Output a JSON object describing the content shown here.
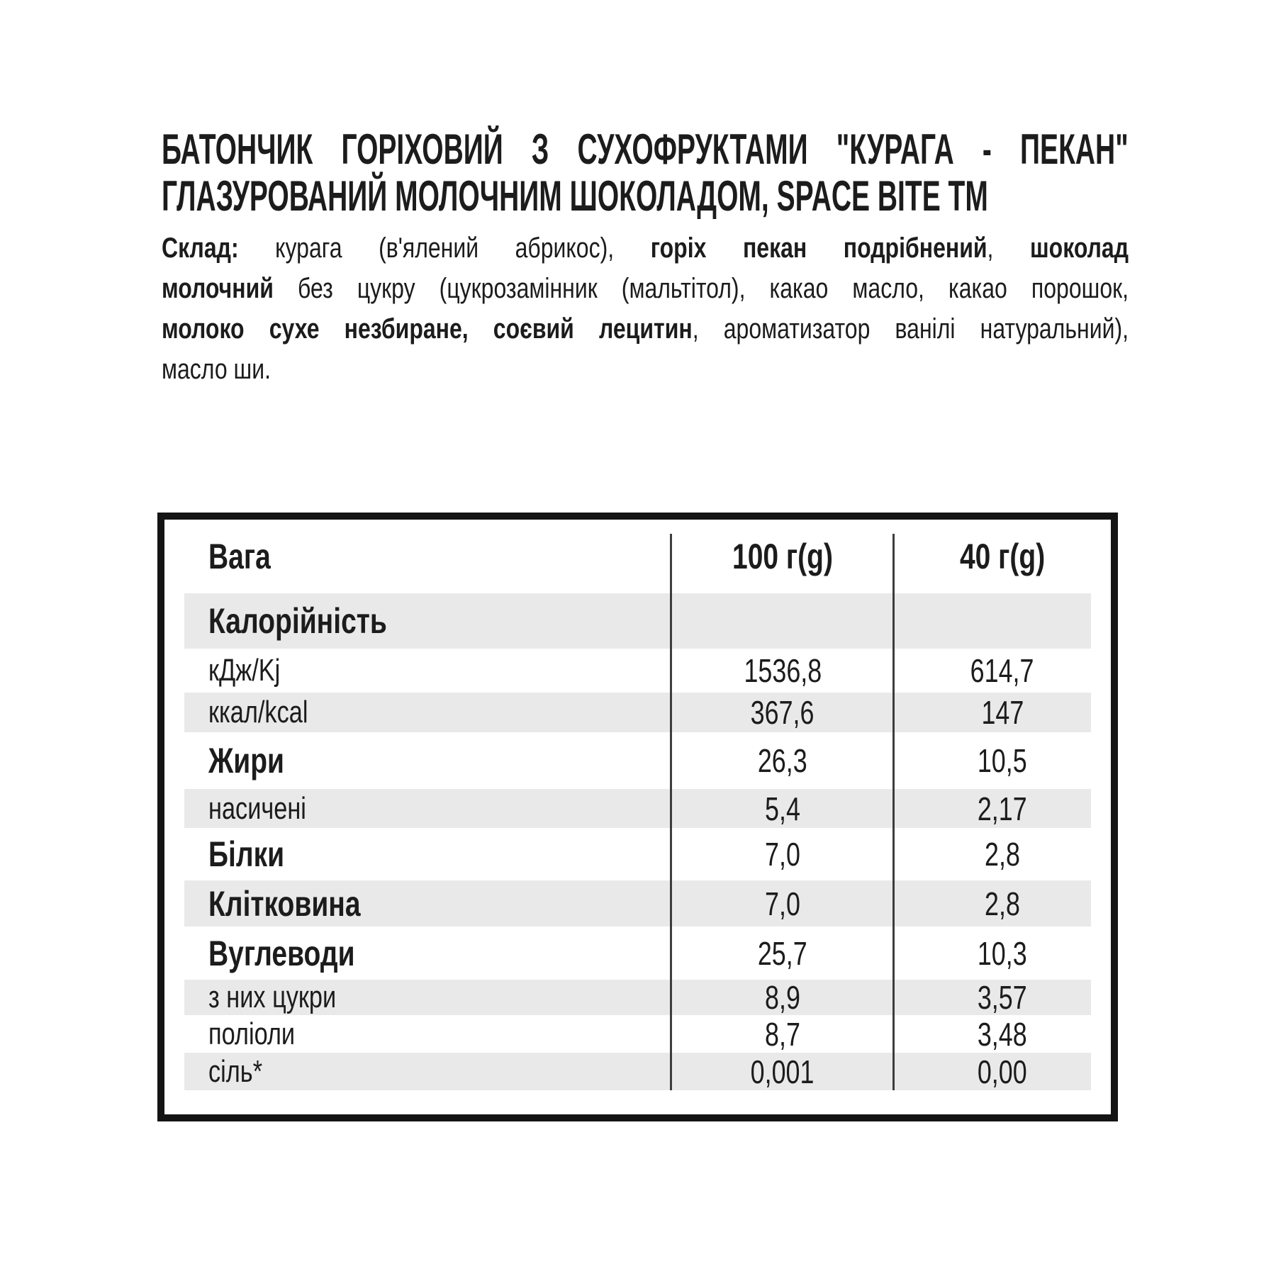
{
  "product": {
    "title_line1": "БАТОНЧИК ГОРІХОВИЙ З СУХОФРУКТАМИ \"КУРАГА - ПЕКАН\"",
    "title_line2": "ГЛАЗУРОВАНИЙ МОЛОЧНИМ ШОКОЛАДОМ, SPACE BITE TM"
  },
  "ingredients": {
    "lines": [
      {
        "segments": [
          {
            "t": "Склад: ",
            "b": true
          },
          {
            "t": "курага (в'ялений абрикос), ",
            "b": false
          },
          {
            "t": "горіх пекан подрібнений",
            "b": true
          },
          {
            "t": ", ",
            "b": false
          },
          {
            "t": "шоколад",
            "b": true
          }
        ]
      },
      {
        "segments": [
          {
            "t": "молочний",
            "b": true
          },
          {
            "t": " без цукру (цукрозамінник (мальтітол), какао масло, какао порошок,",
            "b": false
          }
        ]
      },
      {
        "segments": [
          {
            "t": "молоко сухе незбиране, соєвий лецитин",
            "b": true
          },
          {
            "t": ", ароматизатор ванілі натуральний),",
            "b": false
          }
        ]
      },
      {
        "segments": [
          {
            "t": "масло ши.",
            "b": false
          }
        ]
      }
    ]
  },
  "nutrition_table": {
    "header": {
      "label": "Вага",
      "col100": "100 г(g)",
      "col40": "40 г(g)"
    },
    "rows": [
      {
        "label": "Калорійність",
        "v100": "",
        "v40": ""
      },
      {
        "label": "кДж/Kj",
        "v100": "1536,8",
        "v40": "614,7"
      },
      {
        "label": "ккал/kcal",
        "v100": "367,6",
        "v40": "147"
      },
      {
        "label": "Жири",
        "v100": "26,3",
        "v40": "10,5"
      },
      {
        "label": "насичені",
        "v100": "5,4",
        "v40": "2,17"
      },
      {
        "label": "Білки",
        "v100": "7,0",
        "v40": "2,8"
      },
      {
        "label": "Клітковина",
        "v100": "7,0",
        "v40": "2,8"
      },
      {
        "label": "Вуглеводи",
        "v100": "25,7",
        "v40": "10,3"
      },
      {
        "label": "з них цукри",
        "v100": "8,9",
        "v40": "3,57"
      },
      {
        "label": "поліоли",
        "v100": "8,7",
        "v40": "3,48"
      },
      {
        "label": "сіль*",
        "v100": "0,001",
        "v40": "0,00"
      }
    ]
  },
  "colors": {
    "row_shade": "#e9e9e9",
    "table_border": "#141414",
    "separator": "#3d3d3d",
    "text": "#1c1c1c"
  }
}
